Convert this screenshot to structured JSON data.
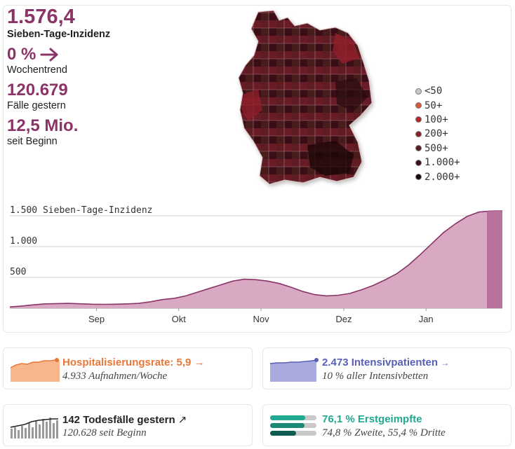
{
  "stats": {
    "incidence_value": "1.576,4",
    "incidence_label": "Sieben-Tage-Inzidenz",
    "trend_value": "0 %",
    "trend_label": "Wochentrend",
    "cases_yesterday_value": "120.679",
    "cases_yesterday_label": "Fälle gestern",
    "cases_total_value": "12,5 Mio.",
    "cases_total_label": "seit Beginn"
  },
  "legend": {
    "items": [
      {
        "label": "<50",
        "color": "#c8c8c8"
      },
      {
        "label": "50+",
        "color": "#d9583c"
      },
      {
        "label": "100+",
        "color": "#b8262c"
      },
      {
        "label": "200+",
        "color": "#8e1f2a"
      },
      {
        "label": "500+",
        "color": "#5e1a23"
      },
      {
        "label": "1.000+",
        "color": "#3a1016"
      },
      {
        "label": "2.000+",
        "color": "#1d0709"
      }
    ]
  },
  "chart_data": {
    "type": "area",
    "ylabel": "Sieben-Tage-Inzidenz",
    "y_ticks": [
      {
        "value": 500,
        "label": "500"
      },
      {
        "value": 1000,
        "label": "1.000"
      },
      {
        "value": 1500,
        "label": "1.500"
      }
    ],
    "ylim": [
      0,
      1500
    ],
    "x_ticks": [
      "Sep",
      "Okt",
      "Nov",
      "Dez",
      "Jan"
    ],
    "series": [
      {
        "values": [
          20,
          35,
          55,
          70,
          75,
          78,
          72,
          65,
          62,
          65,
          70,
          78,
          105,
          140,
          160,
          200,
          260,
          320,
          380,
          440,
          470,
          462,
          440,
          400,
          340,
          270,
          220,
          200,
          210,
          240,
          300,
          370,
          460,
          560,
          700,
          870,
          1050,
          1230,
          1370,
          1490,
          1560,
          1576,
          1580
        ]
      }
    ],
    "area_color": "#d9a9c3",
    "line_color": "#8a3468",
    "highlight_color": "#b7719a"
  },
  "cards": {
    "hospital_title": "Hospitalisierungsrate: 5,9",
    "hospital_sub": "4.933 Aufnahmen/Woche",
    "icu_title": "2.473 Intensivpatienten",
    "icu_sub": "10 % aller Intensivbetten",
    "deaths_title": "142 Todesfälle gestern",
    "deaths_sub": "120.628 seit Beginn",
    "vacc_title": "76,1 % Erstgeimpfte",
    "vacc_sub": "74,8 % Zweite, 55,4 % Dritte",
    "hospital_color": "#e8773a",
    "icu_color": "#5a5fb5",
    "vacc_color": "#22a88f"
  }
}
